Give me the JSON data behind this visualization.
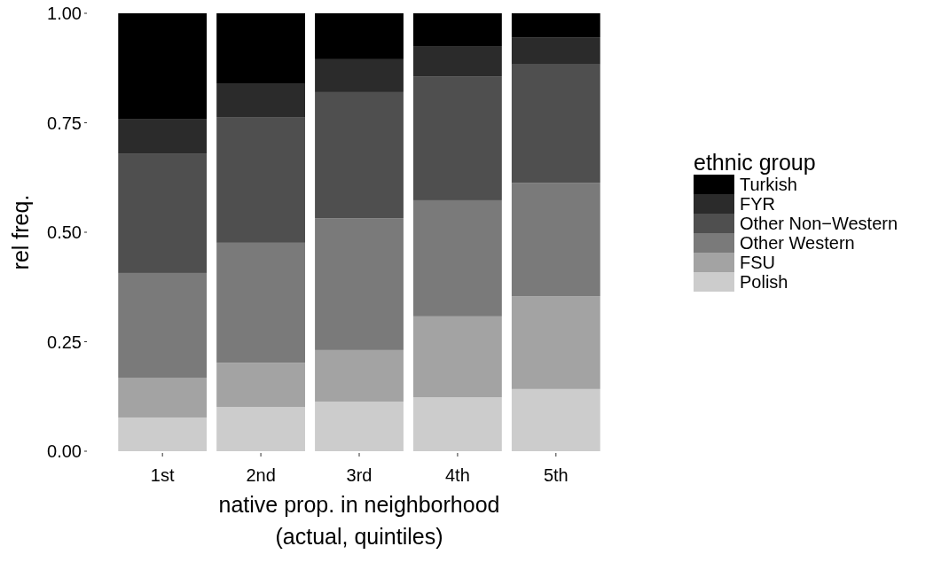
{
  "chart_data": {
    "type": "bar",
    "stacked": true,
    "xlabel": "native prop. in neighborhood\n(actual, quintiles)",
    "ylabel": "rel freq.",
    "legend_title": "ethnic group",
    "legend": "right",
    "grid": false,
    "categories": [
      "1st",
      "2nd",
      "3rd",
      "4th",
      "5th"
    ],
    "ylim": [
      0,
      1
    ],
    "yticks": [
      {
        "value": 0,
        "label": "0.00"
      },
      {
        "value": 0.25,
        "label": "0.25"
      },
      {
        "value": 0.5,
        "label": "0.50"
      },
      {
        "value": 0.75,
        "label": "0.75"
      },
      {
        "value": 1,
        "label": "1.00"
      }
    ],
    "series": [
      {
        "name": "Polish",
        "color": "#cccccc",
        "values": [
          0.077,
          0.101,
          0.113,
          0.123,
          0.142
        ]
      },
      {
        "name": "FSU",
        "color": "#a3a3a3",
        "values": [
          0.091,
          0.101,
          0.118,
          0.185,
          0.212
        ]
      },
      {
        "name": "Other Western",
        "color": "#7a7a7a",
        "values": [
          0.239,
          0.274,
          0.301,
          0.265,
          0.259
        ]
      },
      {
        "name": "Other Non−Western",
        "color": "#4f4f4f",
        "values": [
          0.273,
          0.287,
          0.288,
          0.283,
          0.27
        ]
      },
      {
        "name": "FYR",
        "color": "#2b2b2b",
        "values": [
          0.079,
          0.077,
          0.075,
          0.069,
          0.062
        ]
      },
      {
        "name": "Turkish",
        "color": "#000000",
        "values": [
          0.241,
          0.16,
          0.105,
          0.075,
          0.055
        ]
      }
    ]
  }
}
